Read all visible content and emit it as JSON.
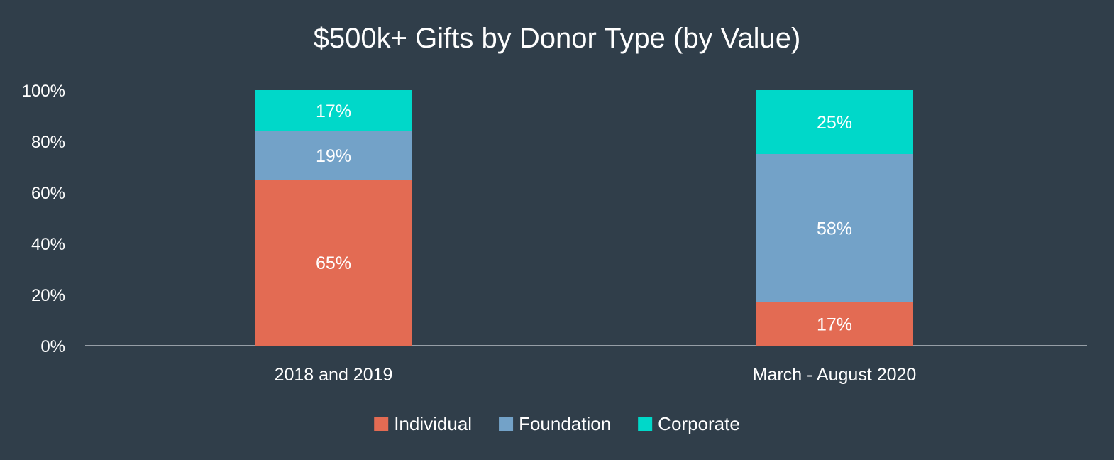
{
  "chart_data": {
    "type": "bar",
    "stacked": true,
    "title": "$500k+ Gifts by Donor Type (by Value)",
    "xlabel": "",
    "ylabel": "",
    "ylim": [
      0,
      100
    ],
    "y_ticks": [
      "0%",
      "20%",
      "40%",
      "60%",
      "80%",
      "100%"
    ],
    "categories": [
      "2018 and 2019",
      "March - August 2020"
    ],
    "series": [
      {
        "name": "Individual",
        "values": [
          65,
          17
        ],
        "labels": [
          "65%",
          "17%"
        ],
        "color": "#e36b53"
      },
      {
        "name": "Foundation",
        "values": [
          19,
          58
        ],
        "labels": [
          "19%",
          "58%"
        ],
        "color": "#73a2c8"
      },
      {
        "name": "Corporate",
        "values": [
          17,
          25
        ],
        "labels": [
          "17%",
          "25%"
        ],
        "color": "#00d8c9"
      }
    ],
    "grid": false,
    "legend_position": "bottom"
  },
  "colors": {
    "background": "#303e4a",
    "text": "#ffffff",
    "axis": "#b8bec4"
  }
}
